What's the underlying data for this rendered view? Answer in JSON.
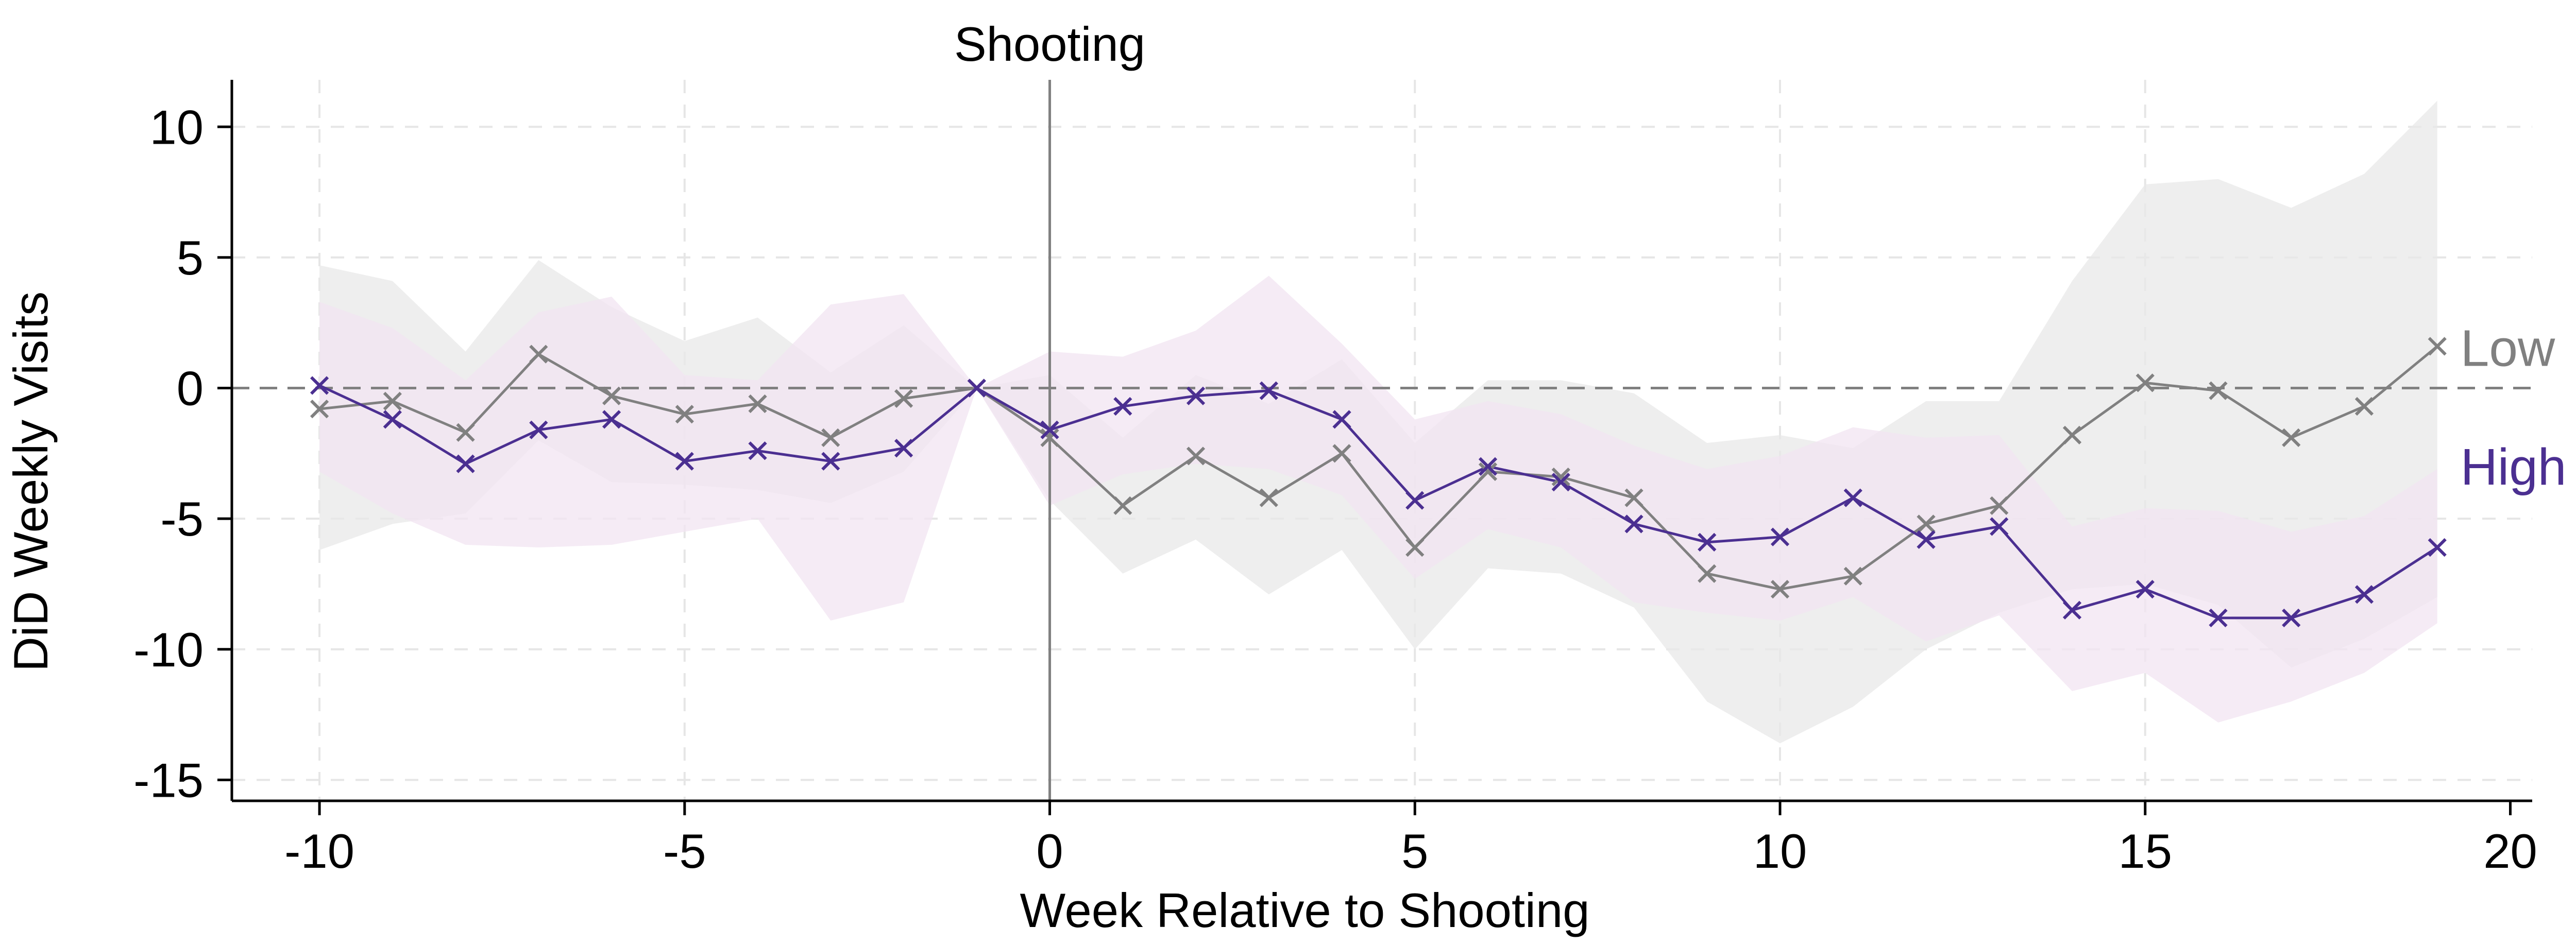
{
  "chart_data": {
    "type": "line",
    "title": "",
    "xlabel": "Week Relative to Shooting",
    "ylabel": "DiD Weekly Visits",
    "xlim": [
      -11.2,
      20.3
    ],
    "ylim": [
      -15.8,
      11.8
    ],
    "xticks": [
      -10,
      -5,
      0,
      5,
      10,
      15,
      20
    ],
    "yticks": [
      10,
      5,
      0,
      -5,
      -10,
      -15
    ],
    "grid": true,
    "reference_line_y": 0,
    "event": {
      "x": 0,
      "label": "Shooting"
    },
    "x": [
      -10,
      -9,
      -8,
      -7,
      -6,
      -5,
      -4,
      -3,
      -2,
      -1,
      0,
      1,
      2,
      3,
      4,
      5,
      6,
      7,
      8,
      9,
      10,
      11,
      12,
      13,
      14,
      15,
      16,
      17,
      18,
      19
    ],
    "series": [
      {
        "name": "Low",
        "color": "#808080",
        "band_color": "#e8e8e8",
        "values": [
          -0.8,
          -0.5,
          -1.7,
          1.3,
          -0.3,
          -1.0,
          -0.6,
          -1.9,
          -0.4,
          0.0,
          -1.9,
          -4.5,
          -2.6,
          -4.2,
          -2.5,
          -6.1,
          -3.2,
          -3.4,
          -4.2,
          -7.1,
          -7.7,
          -7.2,
          -5.2,
          -4.5,
          -1.8,
          0.2,
          -0.1,
          -1.9,
          -0.7,
          1.6
        ],
        "lower": [
          -6.2,
          -5.2,
          -4.8,
          -2.0,
          -3.6,
          -3.7,
          -3.9,
          -4.4,
          -3.2,
          0.0,
          -4.3,
          -7.1,
          -5.8,
          -7.9,
          -6.2,
          -10.0,
          -6.9,
          -7.1,
          -8.4,
          -12.0,
          -13.6,
          -12.2,
          -10.0,
          -8.6,
          -7.7,
          -7.5,
          -8.3,
          -10.7,
          -9.6,
          -8.0
        ],
        "upper": [
          4.7,
          4.1,
          1.4,
          4.9,
          3.1,
          1.8,
          2.7,
          0.6,
          2.4,
          0.0,
          0.5,
          -1.9,
          0.5,
          -0.6,
          1.1,
          -2.1,
          0.3,
          0.3,
          -0.2,
          -2.1,
          -1.8,
          -2.3,
          -0.5,
          -0.5,
          4.1,
          7.8,
          8.0,
          6.9,
          8.2,
          11.0
        ]
      },
      {
        "name": "High",
        "color": "#4b2f91",
        "band_color": "#f1e4f1",
        "values": [
          0.1,
          -1.2,
          -2.9,
          -1.6,
          -1.2,
          -2.8,
          -2.4,
          -2.8,
          -2.3,
          0.0,
          -1.6,
          -0.7,
          -0.3,
          -0.1,
          -1.2,
          -4.3,
          -3.0,
          -3.6,
          -5.2,
          -5.9,
          -5.7,
          -4.2,
          -5.8,
          -5.3,
          -8.5,
          -7.7,
          -8.8,
          -8.8,
          -7.9,
          -6.1
        ],
        "lower": [
          -3.2,
          -4.8,
          -6.0,
          -6.1,
          -6.0,
          -5.5,
          -5.0,
          -8.9,
          -8.2,
          0.0,
          -4.5,
          -3.3,
          -2.9,
          -3.1,
          -4.1,
          -7.3,
          -5.4,
          -6.1,
          -8.2,
          -8.6,
          -8.9,
          -8.0,
          -9.7,
          -8.7,
          -11.6,
          -10.9,
          -12.8,
          -12.0,
          -10.9,
          -9.0
        ],
        "upper": [
          3.3,
          2.3,
          0.3,
          2.9,
          3.5,
          0.5,
          0.3,
          3.2,
          3.6,
          0.0,
          1.4,
          1.2,
          2.2,
          4.3,
          1.7,
          -1.2,
          -0.5,
          -1.0,
          -2.2,
          -3.1,
          -2.6,
          -1.5,
          -1.9,
          -1.8,
          -5.3,
          -4.6,
          -4.7,
          -5.5,
          -4.9,
          -3.1
        ]
      }
    ]
  }
}
